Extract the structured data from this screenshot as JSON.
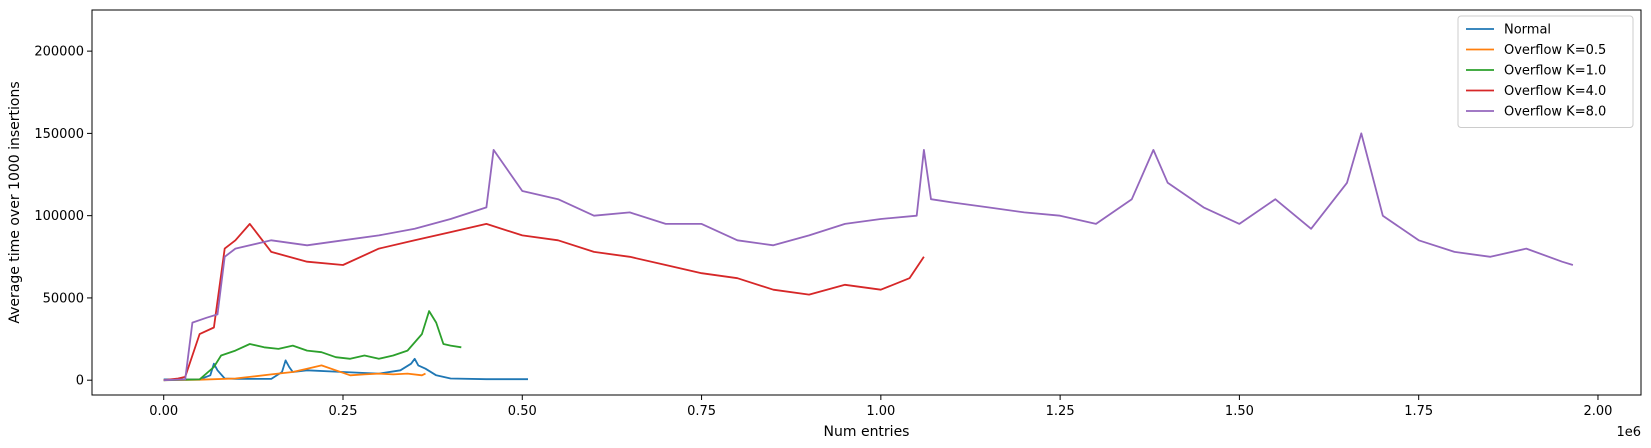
{
  "chart_data": {
    "type": "line",
    "xlabel": "Num entries",
    "ylabel": "Average time over 1000 insertions",
    "x_offset_label": "1e6",
    "xlim": [
      -0.1,
      2.06
    ],
    "ylim": [
      -9000,
      225000
    ],
    "xticks": [
      0.0,
      0.25,
      0.5,
      0.75,
      1.0,
      1.25,
      1.5,
      1.75,
      2.0
    ],
    "xtick_labels": [
      "0.00",
      "0.25",
      "0.50",
      "0.75",
      "1.00",
      "1.25",
      "1.50",
      "1.75",
      "2.00"
    ],
    "yticks": [
      0,
      50000,
      100000,
      150000,
      200000
    ],
    "ytick_labels": [
      "0",
      "50000",
      "100000",
      "150000",
      "200000"
    ],
    "grid": false,
    "legend_position": "top-right",
    "series": [
      {
        "name": "Normal",
        "color": "#1f77b4",
        "x": [
          0.0,
          0.05,
          0.065,
          0.07,
          0.075,
          0.085,
          0.1,
          0.15,
          0.165,
          0.17,
          0.175,
          0.18,
          0.2,
          0.25,
          0.3,
          0.33,
          0.345,
          0.35,
          0.355,
          0.365,
          0.38,
          0.4,
          0.45,
          0.508
        ],
        "y": [
          500,
          500,
          3000,
          10000,
          6000,
          1000,
          800,
          800,
          5000,
          12000,
          8000,
          5000,
          6000,
          5000,
          4000,
          6000,
          10000,
          13000,
          9000,
          7000,
          3000,
          1000,
          600,
          600
        ]
      },
      {
        "name": "Overflow K=0.5",
        "color": "#ff7f0e",
        "x": [
          0.0,
          0.05,
          0.1,
          0.12,
          0.15,
          0.18,
          0.2,
          0.22,
          0.24,
          0.26,
          0.28,
          0.3,
          0.32,
          0.34,
          0.36,
          0.365
        ],
        "y": [
          0,
          300,
          1000,
          2000,
          3500,
          5000,
          7000,
          9000,
          6000,
          3000,
          3500,
          4000,
          3500,
          4000,
          3000,
          4000
        ]
      },
      {
        "name": "Overflow K=1.0",
        "color": "#2ca02c",
        "x": [
          0.0,
          0.05,
          0.07,
          0.08,
          0.1,
          0.12,
          0.14,
          0.16,
          0.18,
          0.2,
          0.22,
          0.24,
          0.26,
          0.28,
          0.3,
          0.32,
          0.34,
          0.36,
          0.37,
          0.38,
          0.39,
          0.4,
          0.415
        ],
        "y": [
          0,
          500,
          8000,
          15000,
          18000,
          22000,
          20000,
          19000,
          21000,
          18000,
          17000,
          14000,
          13000,
          15000,
          13000,
          15000,
          18000,
          28000,
          42000,
          35000,
          22000,
          21000,
          20000
        ]
      },
      {
        "name": "Overflow K=4.0",
        "color": "#d62728",
        "x": [
          0.0,
          0.02,
          0.03,
          0.05,
          0.07,
          0.085,
          0.1,
          0.12,
          0.15,
          0.2,
          0.25,
          0.3,
          0.35,
          0.4,
          0.45,
          0.5,
          0.55,
          0.6,
          0.65,
          0.7,
          0.75,
          0.8,
          0.85,
          0.9,
          0.95,
          1.0,
          1.04,
          1.06
        ],
        "y": [
          0,
          1000,
          2000,
          28000,
          32000,
          80000,
          85000,
          95000,
          78000,
          72000,
          70000,
          80000,
          85000,
          90000,
          95000,
          88000,
          85000,
          78000,
          75000,
          70000,
          65000,
          62000,
          55000,
          52000,
          58000,
          55000,
          62000,
          75000
        ]
      },
      {
        "name": "Overflow K=8.0",
        "color": "#9467bd",
        "x": [
          0.0,
          0.03,
          0.04,
          0.06,
          0.075,
          0.085,
          0.1,
          0.15,
          0.2,
          0.25,
          0.3,
          0.35,
          0.4,
          0.45,
          0.46,
          0.5,
          0.55,
          0.6,
          0.65,
          0.7,
          0.75,
          0.8,
          0.85,
          0.9,
          0.95,
          1.0,
          1.05,
          1.06,
          1.07,
          1.1,
          1.15,
          1.2,
          1.25,
          1.3,
          1.35,
          1.38,
          1.4,
          1.45,
          1.5,
          1.55,
          1.6,
          1.65,
          1.67,
          1.7,
          1.75,
          1.8,
          1.85,
          1.9,
          1.95,
          1.965
        ],
        "y": [
          0,
          500,
          35000,
          38000,
          40000,
          75000,
          80000,
          85000,
          82000,
          85000,
          88000,
          92000,
          98000,
          105000,
          140000,
          115000,
          110000,
          100000,
          102000,
          95000,
          95000,
          85000,
          82000,
          88000,
          95000,
          98000,
          100000,
          140000,
          110000,
          108000,
          105000,
          102000,
          100000,
          95000,
          110000,
          140000,
          120000,
          105000,
          95000,
          110000,
          92000,
          120000,
          150000,
          100000,
          85000,
          78000,
          75000,
          80000,
          72000,
          70000
        ]
      }
    ]
  }
}
